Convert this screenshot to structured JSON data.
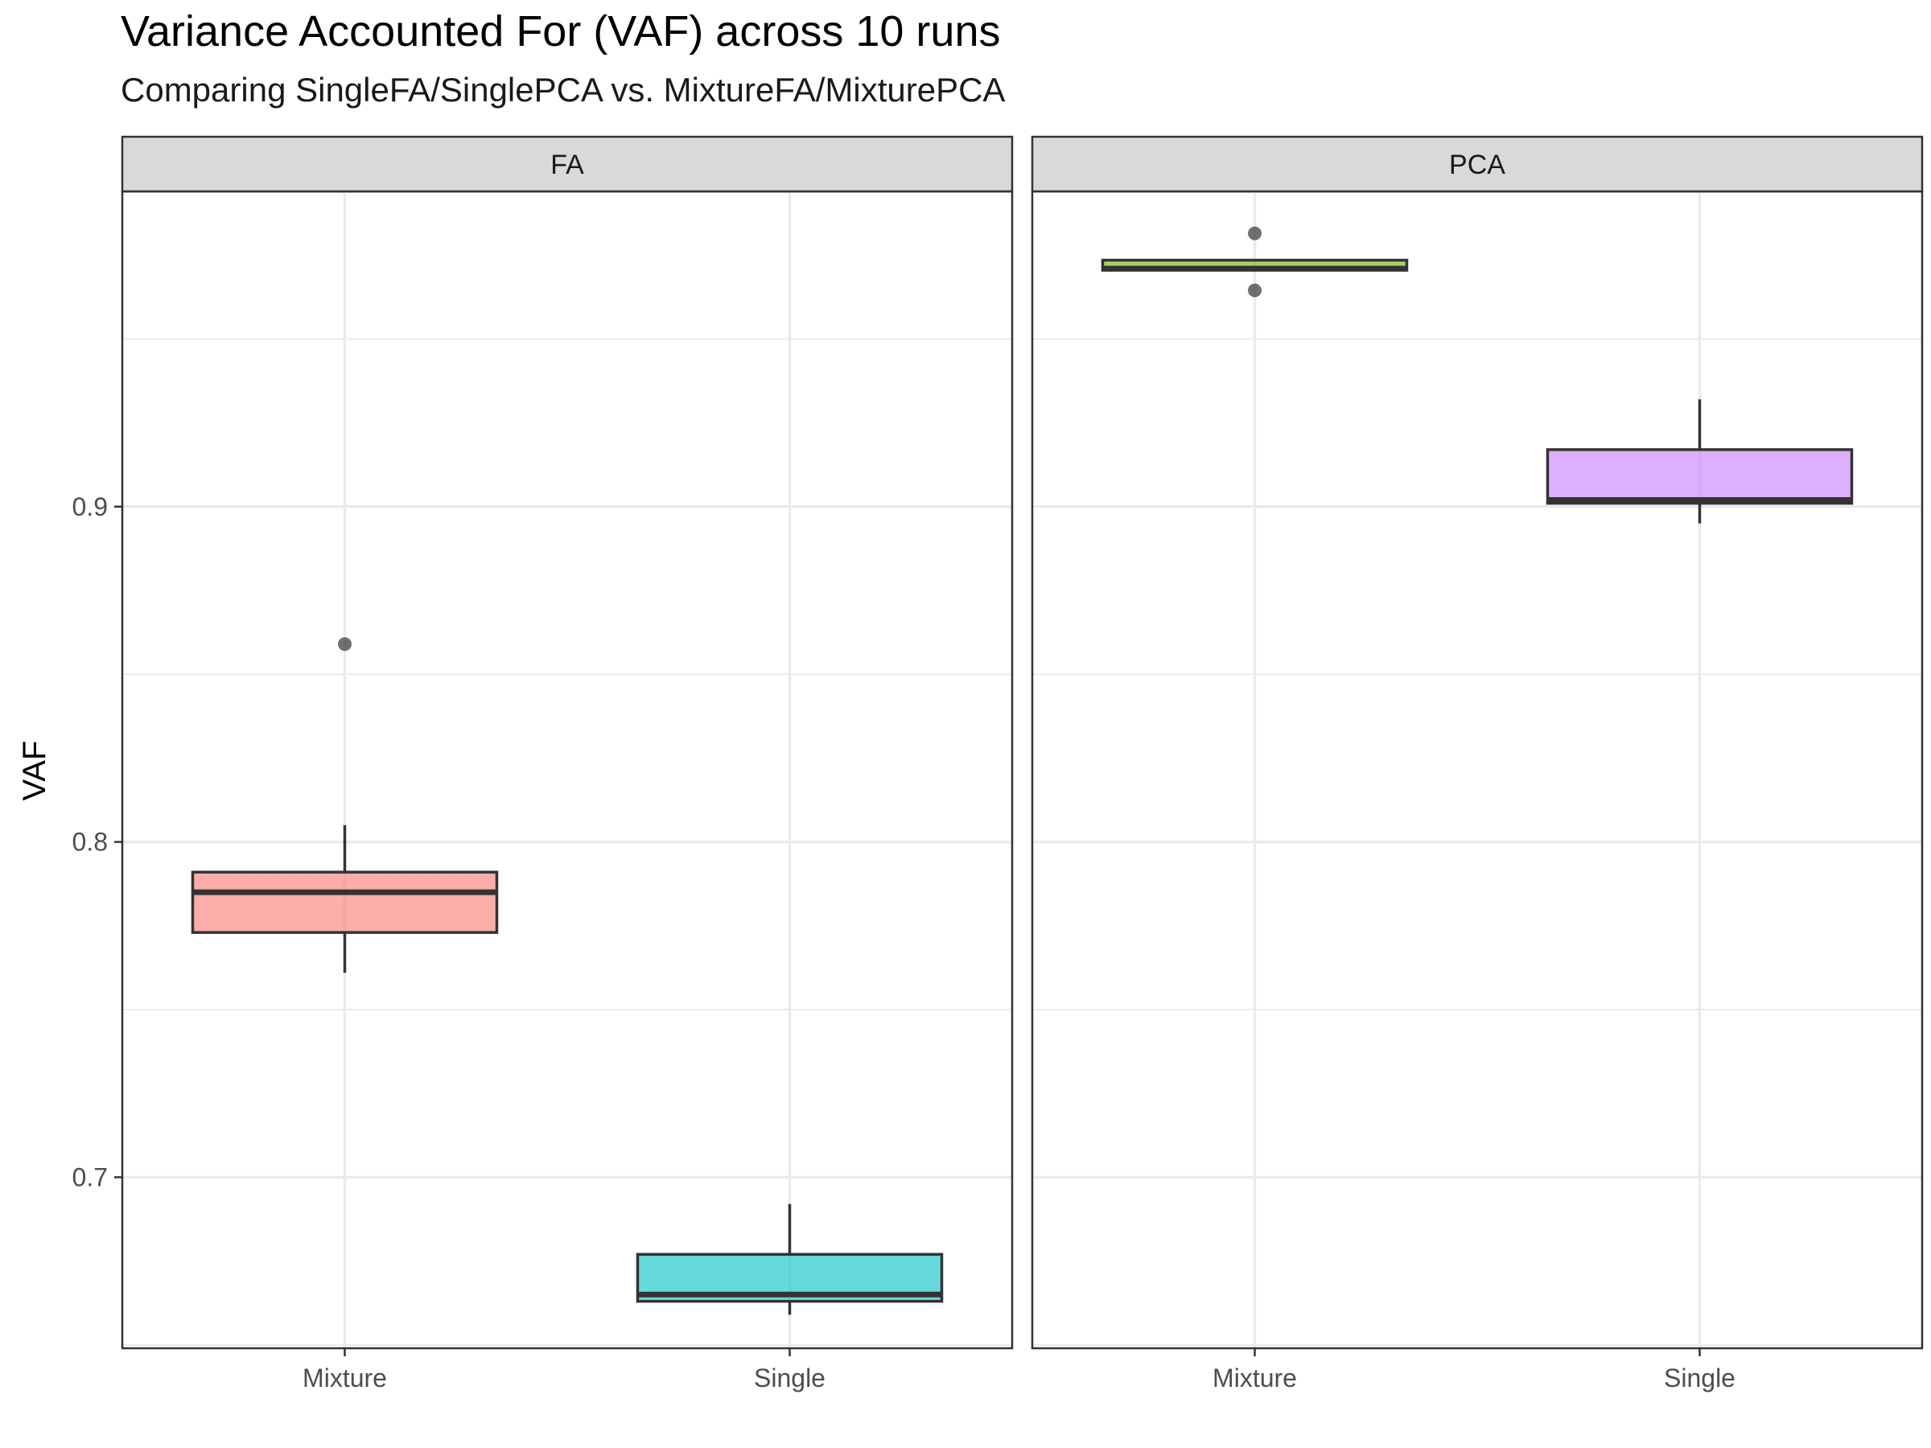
{
  "chart_data": {
    "type": "boxplot",
    "title": "Variance Accounted For (VAF) across 10 runs",
    "subtitle": "Comparing SingleFA/SinglePCA vs. MixtureFA/MixturePCA",
    "xlabel": "",
    "ylabel": "VAF",
    "ylim": [
      0.649,
      0.994
    ],
    "yticks": [
      0.7,
      0.8,
      0.9
    ],
    "grid": true,
    "facets": [
      {
        "name": "FA",
        "categories": [
          "Mixture",
          "Single"
        ],
        "boxes": [
          {
            "category": "Mixture",
            "min": 0.761,
            "q1": 0.773,
            "median": 0.785,
            "q3": 0.791,
            "max": 0.805,
            "outliers": [
              0.859
            ],
            "color": "#F8766D"
          },
          {
            "category": "Single",
            "min": 0.659,
            "q1": 0.663,
            "median": 0.665,
            "q3": 0.677,
            "max": 0.692,
            "outliers": [],
            "color": "#00BFC4"
          }
        ]
      },
      {
        "name": "PCA",
        "categories": [
          "Mixture",
          "Single"
        ],
        "boxes": [
          {
            "category": "Mixture",
            "min": 0.9705,
            "q1": 0.9705,
            "median": 0.971,
            "q3": 0.9735,
            "max": 0.9735,
            "outliers": [
              0.9815,
              0.9645
            ],
            "color": "#7CAE00"
          },
          {
            "category": "Single",
            "min": 0.895,
            "q1": 0.901,
            "median": 0.902,
            "q3": 0.917,
            "max": 0.932,
            "outliers": [],
            "color": "#C77CFF"
          }
        ]
      }
    ]
  }
}
